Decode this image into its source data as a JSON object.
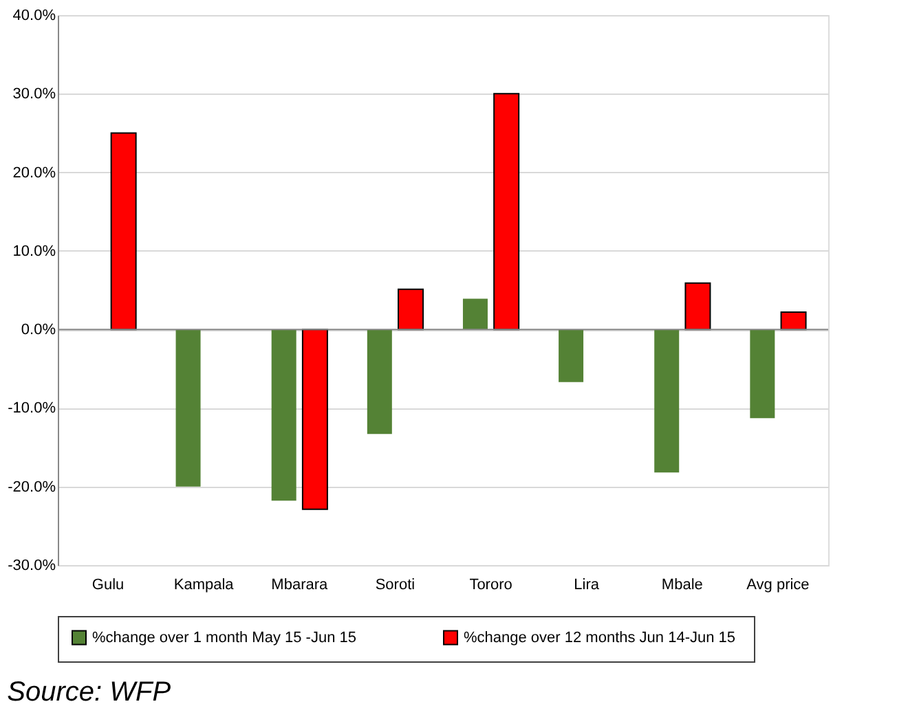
{
  "chart_data": {
    "type": "bar",
    "categories": [
      "Gulu",
      "Kampala",
      "Mbarara",
      "Soroti",
      "Tororo",
      "Lira",
      "Mbale",
      "Avg price"
    ],
    "series": [
      {
        "name": "%change over 1 month May 15 -Jun 15",
        "color": "#548235",
        "values": [
          null,
          -20.0,
          -21.8,
          -13.3,
          3.9,
          -6.7,
          -18.2,
          -11.3
        ]
      },
      {
        "name": "%change over 12 months  Jun 14-Jun 15",
        "color": "#ff0000",
        "values": [
          25.0,
          null,
          -22.9,
          5.1,
          30.0,
          null,
          5.9,
          2.2
        ]
      }
    ],
    "ylim": [
      -30,
      40
    ],
    "yticks": [
      {
        "value": -30,
        "label": "-30.0%"
      },
      {
        "value": -20,
        "label": "-20.0%"
      },
      {
        "value": -10,
        "label": "-10.0%"
      },
      {
        "value": 0,
        "label": "0.0%"
      },
      {
        "value": 10,
        "label": "10.0%"
      },
      {
        "value": 20,
        "label": "20.0%"
      },
      {
        "value": 30,
        "label": "30.0%"
      },
      {
        "value": 40,
        "label": "40.0%"
      }
    ],
    "grid": "y",
    "legend": "bottom",
    "annotations": [
      "Source: WFP"
    ]
  }
}
